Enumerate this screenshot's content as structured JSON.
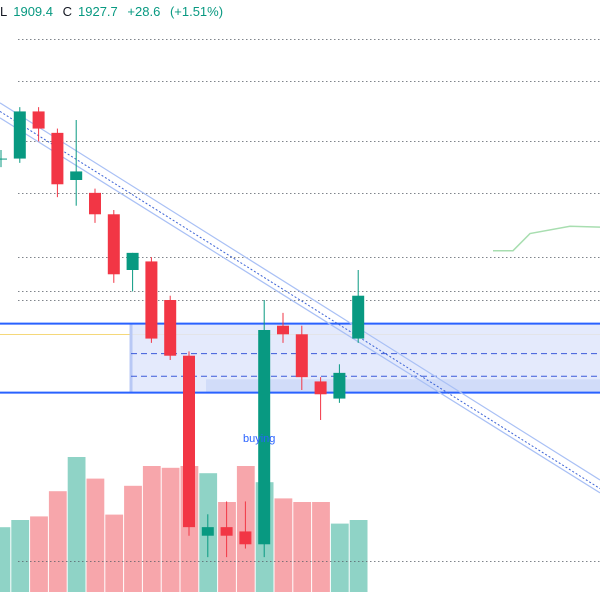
{
  "header": {
    "low_label": "L",
    "low_value": "1909.4",
    "close_label": "C",
    "close_value": "1927.7",
    "change": "+28.6",
    "change_pct": "(+1.51%)"
  },
  "annotation_text": "buying",
  "colors": {
    "up": "#089981",
    "down": "#f23645",
    "vol_up": "#8fd3c6",
    "vol_down": "#f7a6ab",
    "zone_fill": "#dfe6fb",
    "zone_line": "#2962ff",
    "channel": "#a9c0f5",
    "ma": "#a8deb0",
    "yellow": "#f5d87a"
  },
  "chart_data": {
    "type": "candlestick",
    "y_range": [
      1860,
      2000
    ],
    "candles": [
      {
        "o": 1963,
        "h": 1965,
        "l": 1961,
        "c": 1963
      },
      {
        "o": 1963,
        "h": 1975,
        "l": 1962,
        "c": 1974
      },
      {
        "o": 1974,
        "h": 1975,
        "l": 1967,
        "c": 1970
      },
      {
        "o": 1969,
        "h": 1970,
        "l": 1954,
        "c": 1957
      },
      {
        "o": 1958,
        "h": 1972,
        "l": 1952,
        "c": 1960
      },
      {
        "o": 1955,
        "h": 1956,
        "l": 1948,
        "c": 1950
      },
      {
        "o": 1950,
        "h": 1951,
        "l": 1934,
        "c": 1936
      },
      {
        "o": 1937,
        "h": 1941,
        "l": 1932,
        "c": 1941
      },
      {
        "o": 1939,
        "h": 1940,
        "l": 1920,
        "c": 1921
      },
      {
        "o": 1930,
        "h": 1931,
        "l": 1916,
        "c": 1917
      },
      {
        "o": 1917,
        "h": 1918,
        "l": 1875,
        "c": 1877
      },
      {
        "o": 1875,
        "h": 1880,
        "l": 1870,
        "c": 1877
      },
      {
        "o": 1877,
        "h": 1883,
        "l": 1870,
        "c": 1875
      },
      {
        "o": 1876,
        "h": 1883,
        "l": 1872,
        "c": 1873
      },
      {
        "o": 1873,
        "h": 1930,
        "l": 1870,
        "c": 1923
      },
      {
        "o": 1924,
        "h": 1927,
        "l": 1920,
        "c": 1922
      },
      {
        "o": 1922,
        "h": 1924,
        "l": 1909,
        "c": 1912
      },
      {
        "o": 1911,
        "h": 1912,
        "l": 1902,
        "c": 1908
      },
      {
        "o": 1907,
        "h": 1915,
        "l": 1906,
        "c": 1913
      },
      {
        "o": 1921,
        "h": 1937,
        "l": 1920,
        "c": 1931
      }
    ],
    "volume": [
      0.36,
      0.4,
      0.42,
      0.56,
      0.75,
      0.63,
      0.43,
      0.59,
      0.7,
      0.69,
      0.7,
      0.66,
      0.5,
      0.7,
      0.61,
      0.52,
      0.5,
      0.5,
      0.38,
      0.4
    ],
    "volume_up": [
      true,
      true,
      false,
      false,
      true,
      false,
      false,
      false,
      false,
      false,
      false,
      true,
      false,
      false,
      true,
      false,
      false,
      false,
      true,
      true
    ],
    "horizontal_levels": [
      {
        "price": 1991,
        "style": "dotted"
      },
      {
        "price": 1981,
        "style": "dotted"
      },
      {
        "price": 1967,
        "style": "dotted"
      },
      {
        "price": 1955,
        "style": "dotted"
      },
      {
        "price": 1940,
        "style": "dotted"
      },
      {
        "price": 1932,
        "style": "dotted"
      },
      {
        "price": 1930,
        "style": "dotted"
      },
      {
        "price": 1869,
        "style": "dotted"
      }
    ],
    "zone": {
      "top": 1924.5,
      "bottom": 1908.4,
      "inner_top": 1911.5,
      "dashed": [
        1917.5,
        1912.2
      ]
    },
    "channel_lines": [
      {
        "x1": 0,
        "y1": 1972.5,
        "x2": 600,
        "y2": 1885
      },
      {
        "x1": 0,
        "y1": 1976,
        "x2": 600,
        "y2": 1888
      },
      {
        "x1": 0,
        "y1": 1974,
        "x2": 600,
        "y2": 1886
      }
    ],
    "ma_points": [
      {
        "x": 493,
        "y": 1941.5
      },
      {
        "x": 513,
        "y": 1941.5
      },
      {
        "x": 530,
        "y": 1945.5
      },
      {
        "x": 570,
        "y": 1947.2
      },
      {
        "x": 600,
        "y": 1947
      }
    ]
  }
}
